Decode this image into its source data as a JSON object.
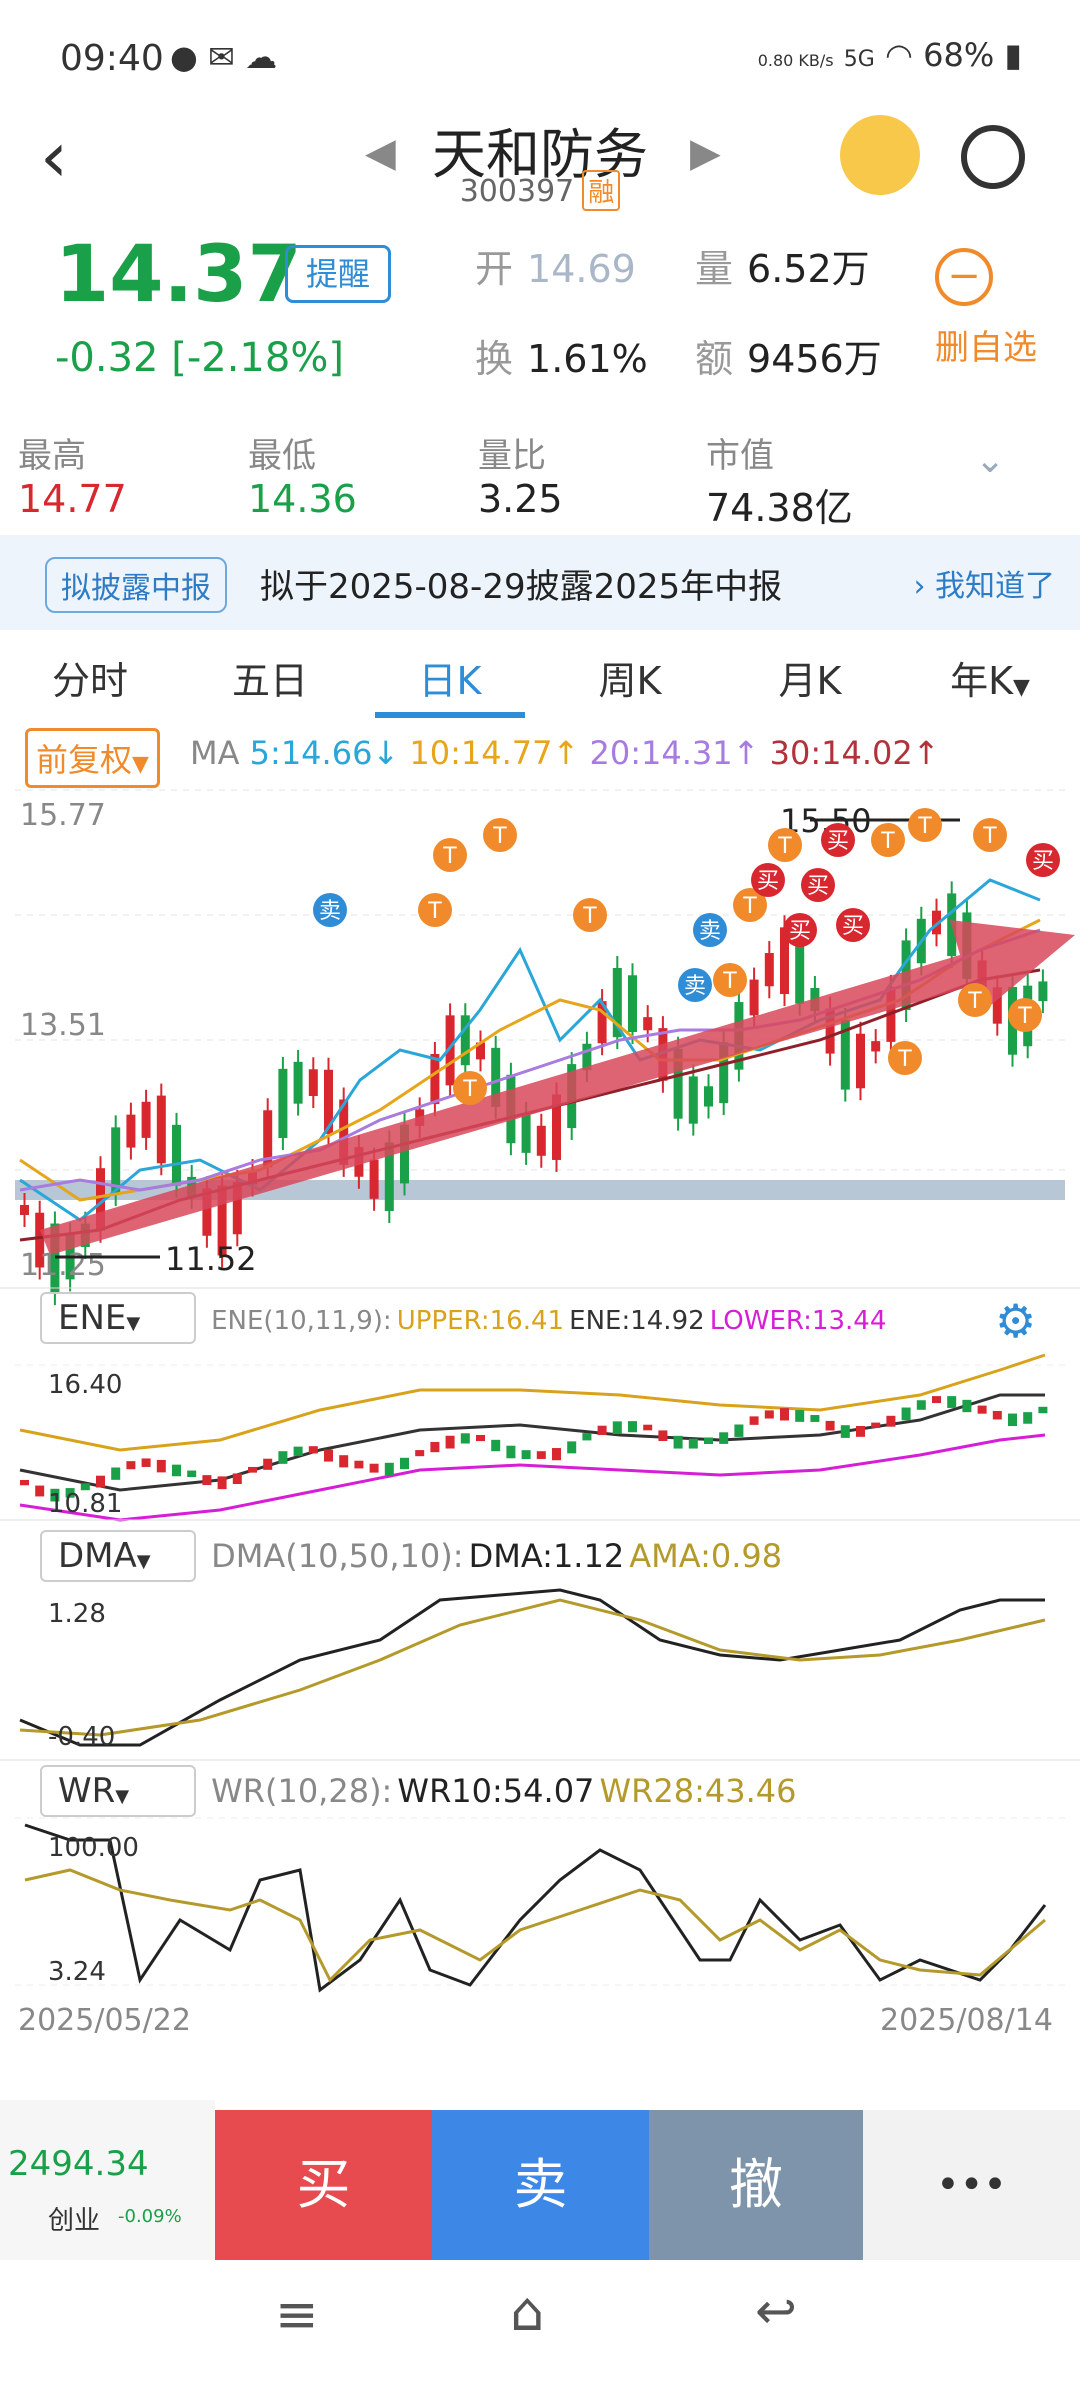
{
  "status": {
    "time": "09:40",
    "net": "0.80 KB/s",
    "signal": "5G",
    "battery": "68%"
  },
  "header": {
    "title": "天和防务",
    "code": "300397",
    "badge": "融"
  },
  "quote": {
    "price": "14.37",
    "change": "-0.32",
    "change_pct": "[-2.18%]",
    "alert_label": "提醒",
    "open_label": "开",
    "open": "14.69",
    "vol_label": "量",
    "vol": "6.52万",
    "turn_label": "换",
    "turn": "1.61%",
    "amt_label": "额",
    "amt": "9456万",
    "del_label": "删自选"
  },
  "stats": [
    {
      "label": "最高",
      "value": "14.77",
      "color": "#d8272f"
    },
    {
      "label": "最低",
      "value": "14.36",
      "color": "#1aa049"
    },
    {
      "label": "量比",
      "value": "3.25",
      "color": "#222"
    },
    {
      "label": "市值",
      "value": "74.38亿",
      "color": "#222"
    }
  ],
  "banner": {
    "tag": "拟披露中报",
    "text": "拟于2025-08-29披露2025年中报",
    "dismiss": "我知道了"
  },
  "tabs": [
    "分时",
    "五日",
    "日K",
    "周K",
    "月K",
    "年K"
  ],
  "ma": {
    "adjust": "前复权",
    "label": "MA",
    "ma5": "5:14.66",
    "ma10": "10:14.77",
    "ma20": "20:14.31",
    "ma30": "30:14.02"
  },
  "kline": {
    "top": "15.77",
    "mid": "13.51",
    "bottom": "11.25",
    "high_mark": "15.50",
    "low_mark": "11.52",
    "sell": "卖",
    "buy": "买",
    "t": "T"
  },
  "ene": {
    "name": "ENE",
    "params": "ENE(10,11,9):",
    "upper": "UPPER:16.41",
    "mid": "ENE:14.92",
    "lower": "LOWER:13.44",
    "top": "16.40",
    "bottom": "10.81"
  },
  "dma": {
    "name": "DMA",
    "params": "DMA(10,50,10):",
    "dma": "DMA:1.12",
    "ama": "AMA:0.98",
    "top": "1.28",
    "bottom": "-0.40"
  },
  "wr": {
    "name": "WR",
    "params": "WR(10,28):",
    "wr10": "WR10:54.07",
    "wr28": "WR28:43.46",
    "top": "100.00",
    "bottom": "3.24"
  },
  "dates": {
    "start": "2025/05/22",
    "end": "2025/08/14"
  },
  "bottom": {
    "index_value": "2494.34",
    "index_name": "创业",
    "index_pct": "-0.09%",
    "buy": "买",
    "sell": "卖",
    "cancel": "撤",
    "more": "•••"
  },
  "colors": {
    "up": "#d8272f",
    "down": "#1aa049",
    "blue": "#2f8cd6",
    "orange": "#f08a2a"
  }
}
